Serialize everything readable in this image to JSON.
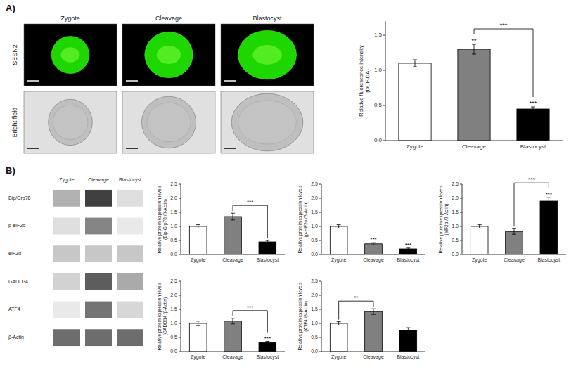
{
  "chart_data": [
    {
      "type": "image",
      "panel_label": "A)",
      "columns": [
        "Zygote",
        "Cleavage",
        "Blastocyst"
      ],
      "rows": [
        "SESN2",
        "Bright field"
      ]
    },
    {
      "type": "bar",
      "categories": [
        "Zygote",
        "Cleavage",
        "Blastocyst"
      ],
      "values": [
        1.1,
        1.3,
        0.45
      ],
      "errors": [
        0.05,
        0.07,
        0.03
      ],
      "colors": [
        "white",
        "#808080",
        "black"
      ],
      "ylabel": "Relative fluorescence intensity\n(DCF-DA)",
      "ylim": [
        0,
        1.7
      ],
      "yticks": [
        {
          "value": 0,
          "label": "0.0"
        },
        0.5,
        {
          "value": 1,
          "label": "1.0"
        },
        1.5
      ],
      "annotations": [
        {
          "text": "**",
          "at": 1
        },
        {
          "text": "***",
          "at": 2
        },
        {
          "text": "***",
          "between": [
            1,
            2
          ]
        }
      ]
    },
    {
      "type": "heatmap",
      "panel_label": "B)",
      "categories": [
        "Zygote",
        "Cleavage",
        "Blastocyst"
      ],
      "rows": [
        "Bip/Grp78",
        "p-eIF2α",
        "eIF2α",
        "GADD34",
        "ATF4",
        "β-Actin"
      ],
      "cells": [
        [
          0.35,
          0.85,
          0.15
        ],
        [
          0.15,
          0.55,
          0.1
        ],
        [
          0.25,
          0.25,
          0.25
        ],
        [
          0.2,
          0.72,
          0.38
        ],
        [
          0.1,
          0.62,
          0.18
        ],
        [
          0.65,
          0.65,
          0.65
        ]
      ]
    },
    {
      "type": "bar",
      "categories": [
        "Zygote",
        "Cleavage",
        "Blastocyst"
      ],
      "values": [
        1.0,
        1.35,
        0.45
      ],
      "errors": [
        0.06,
        0.12,
        0.05
      ],
      "colors": [
        "white",
        "#808080",
        "black"
      ],
      "ylabel": "Relative protein expression levels\n(Bip-Grp78 /β-Actin)",
      "ylim": [
        0,
        2.5
      ],
      "yticks": [
        {
          "value": 0,
          "label": "0.0"
        },
        0.5,
        {
          "value": 1,
          "label": "1.0"
        },
        1.5,
        {
          "value": 2,
          "label": "2.0"
        },
        2.5
      ],
      "annotations": [
        {
          "text": "***",
          "between": [
            1,
            2
          ]
        }
      ]
    },
    {
      "type": "bar",
      "categories": [
        "Zygote",
        "Cleavage",
        "Blastocyst"
      ],
      "values": [
        1.0,
        0.38,
        0.2
      ],
      "errors": [
        0.06,
        0.04,
        0.03
      ],
      "colors": [
        "white",
        "#808080",
        "black"
      ],
      "ylabel": "Relative protein expression levels\n(p-eIF2α /β-Actin)",
      "ylim": [
        0,
        2.5
      ],
      "yticks": [
        {
          "value": 0,
          "label": "0.0"
        },
        0.5,
        {
          "value": 1,
          "label": "1.0"
        },
        1.5,
        {
          "value": 2,
          "label": "2.0"
        },
        2.5
      ],
      "annotations": [
        {
          "text": "***",
          "at": 1
        },
        {
          "text": "***",
          "at": 2
        }
      ]
    },
    {
      "type": "bar",
      "categories": [
        "Zygote",
        "Cleavage",
        "Blastocyst"
      ],
      "values": [
        1.0,
        0.82,
        1.9
      ],
      "errors": [
        0.06,
        0.1,
        0.12
      ],
      "colors": [
        "white",
        "#808080",
        "black"
      ],
      "ylabel": "Relative protein expression levels\n(eIF2α /β-Actin)",
      "ylim": [
        0,
        2.5
      ],
      "yticks": [
        {
          "value": 0,
          "label": "0.0"
        },
        0.5,
        {
          "value": 1,
          "label": "1.0"
        },
        1.5,
        {
          "value": 2,
          "label": "2.0"
        },
        2.5
      ],
      "annotations": [
        {
          "text": "***",
          "between": [
            1,
            2
          ]
        },
        {
          "text": "***",
          "at": 2
        }
      ]
    },
    {
      "type": "bar",
      "categories": [
        "Zygote",
        "Cleavage",
        "Blastocyst"
      ],
      "values": [
        1.0,
        1.08,
        0.32
      ],
      "errors": [
        0.08,
        0.1,
        0.04
      ],
      "colors": [
        "white",
        "#808080",
        "black"
      ],
      "ylabel": "Relative protein expression levels\n(GADD34 /β-Actin)",
      "ylim": [
        0,
        2.5
      ],
      "yticks": [
        {
          "value": 0,
          "label": "0.0"
        },
        0.5,
        {
          "value": 1,
          "label": "1.0"
        },
        1.5,
        {
          "value": 2,
          "label": "2.0"
        },
        2.5
      ],
      "annotations": [
        {
          "text": "***",
          "between": [
            1,
            2
          ]
        },
        {
          "text": "***",
          "at": 2
        }
      ]
    },
    {
      "type": "bar",
      "categories": [
        "Zygote",
        "Cleavage",
        "Blastocyst"
      ],
      "values": [
        1.0,
        1.42,
        0.75
      ],
      "errors": [
        0.06,
        0.1,
        0.1
      ],
      "colors": [
        "white",
        "#808080",
        "black"
      ],
      "ylabel": "Relative protein expression levels\n(ATF4 /β-Actin)",
      "ylim": [
        0,
        2.5
      ],
      "yticks": [
        {
          "value": 0,
          "label": "0.0"
        },
        0.5,
        {
          "value": 1,
          "label": "1.0"
        },
        1.5,
        {
          "value": 2,
          "label": "2.0"
        },
        2.5
      ],
      "annotations": [
        {
          "text": "**",
          "between": [
            0,
            1
          ]
        }
      ]
    }
  ]
}
